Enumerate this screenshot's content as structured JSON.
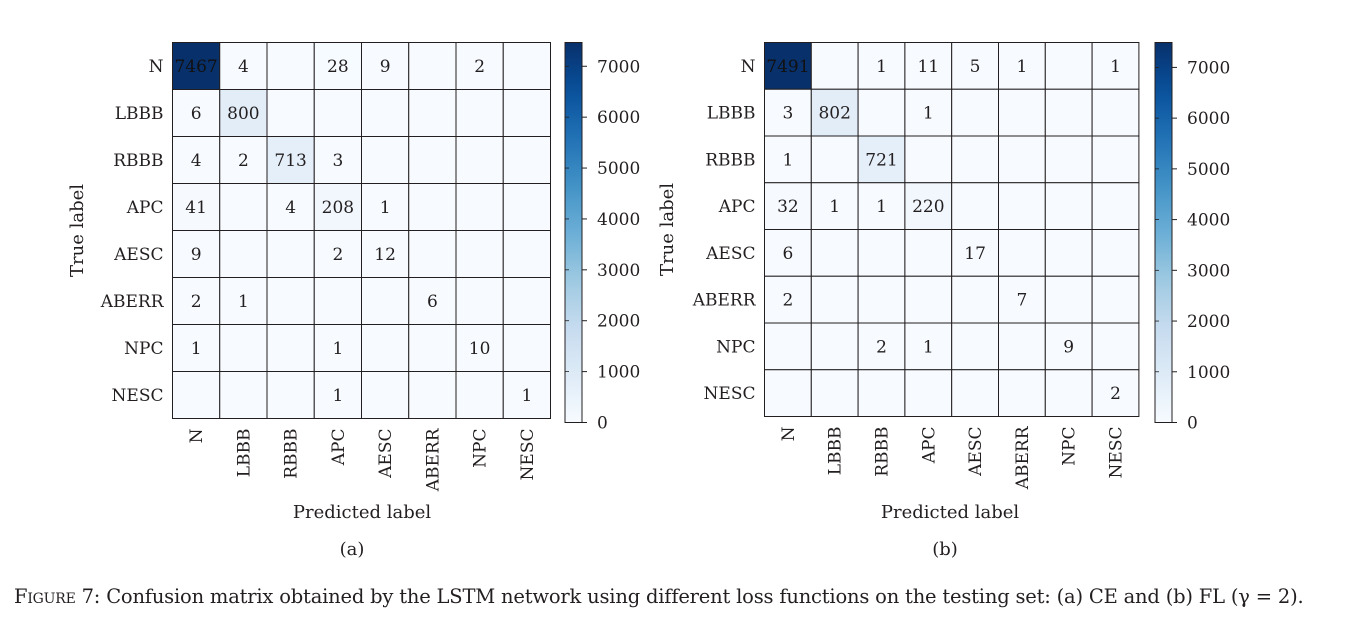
{
  "chart_data": [
    {
      "type": "heatmap",
      "panel_label": "(a)",
      "xlabel": "Predicted label",
      "ylabel": "True label",
      "categories": [
        "N",
        "LBBB",
        "RBBB",
        "APC",
        "AESC",
        "ABERR",
        "NPC",
        "NESC"
      ],
      "matrix": [
        [
          7467,
          4,
          null,
          28,
          9,
          null,
          2,
          null
        ],
        [
          6,
          800,
          null,
          null,
          null,
          null,
          null,
          null
        ],
        [
          4,
          2,
          713,
          3,
          null,
          null,
          null,
          null
        ],
        [
          41,
          null,
          4,
          208,
          1,
          null,
          null,
          null
        ],
        [
          9,
          null,
          null,
          2,
          12,
          null,
          null,
          null
        ],
        [
          2,
          1,
          null,
          null,
          null,
          6,
          null,
          null
        ],
        [
          1,
          null,
          null,
          1,
          null,
          null,
          10,
          null
        ],
        [
          null,
          null,
          null,
          1,
          null,
          null,
          null,
          1
        ]
      ],
      "colorbar": {
        "min": 0,
        "max": 7467,
        "ticks": [
          0,
          1000,
          2000,
          3000,
          4000,
          5000,
          6000,
          7000
        ],
        "colormap": "Blues"
      }
    },
    {
      "type": "heatmap",
      "panel_label": "(b)",
      "xlabel": "Predicted label",
      "ylabel": "True label",
      "categories": [
        "N",
        "LBBB",
        "RBBB",
        "APC",
        "AESC",
        "ABERR",
        "NPC",
        "NESC"
      ],
      "matrix": [
        [
          7491,
          null,
          1,
          11,
          5,
          1,
          null,
          1
        ],
        [
          3,
          802,
          null,
          1,
          null,
          null,
          null,
          null
        ],
        [
          1,
          null,
          721,
          null,
          null,
          null,
          null,
          null
        ],
        [
          32,
          1,
          1,
          220,
          null,
          null,
          null,
          null
        ],
        [
          6,
          null,
          null,
          null,
          17,
          null,
          null,
          null
        ],
        [
          2,
          null,
          null,
          null,
          null,
          7,
          null,
          null
        ],
        [
          null,
          null,
          2,
          1,
          null,
          null,
          9,
          null
        ],
        [
          null,
          null,
          null,
          null,
          null,
          null,
          null,
          2
        ]
      ],
      "colorbar": {
        "min": 0,
        "max": 7491,
        "ticks": [
          0,
          1000,
          2000,
          3000,
          4000,
          5000,
          6000,
          7000
        ],
        "colormap": "Blues"
      }
    }
  ],
  "caption": {
    "prefix": "Figure 7:",
    "text": "Confusion matrix obtained by the LSTM network using different loss functions on the testing set: (a) CE and (b) FL (γ = 2)."
  }
}
